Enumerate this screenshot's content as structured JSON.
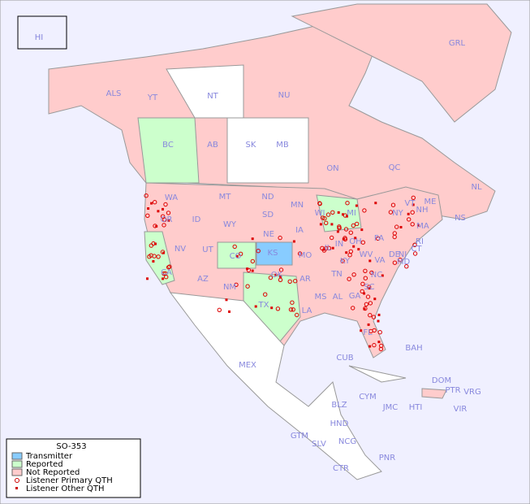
{
  "map": {
    "title": "SO-353",
    "labels": [
      "HI",
      "GRL",
      "ALS",
      "YT",
      "NT",
      "NU",
      "BC",
      "AB",
      "SK",
      "MB",
      "ON",
      "QC",
      "NL",
      "NS",
      "WA",
      "MT",
      "ND",
      "MN",
      "OR",
      "ID",
      "SD",
      "WI",
      "MI",
      "WY",
      "NE",
      "IA",
      "NV",
      "UT",
      "CO",
      "KS",
      "MO",
      "IL",
      "IN",
      "OH",
      "PA",
      "NY",
      "VT",
      "NH",
      "ME",
      "MA",
      "CT",
      "RI",
      "NJ",
      "DE",
      "MD",
      "WV",
      "VA",
      "KY",
      "TN",
      "NC",
      "SC",
      "GA",
      "AL",
      "MS",
      "LA",
      "AR",
      "OK",
      "TX",
      "NM",
      "AZ",
      "CA",
      "FL",
      "MEX",
      "CUB",
      "BAH",
      "DOM",
      "PTR",
      "VRG",
      "CYM",
      "JMC",
      "HTI",
      "VIR",
      "BLZ",
      "HND",
      "GTM",
      "SLV",
      "NCG",
      "CTR",
      "PNR"
    ]
  },
  "legend": {
    "items": [
      "Transmitter",
      "Reported",
      "Not Reported",
      "Listener Primary QTH",
      "Listener Other QTH"
    ]
  }
}
